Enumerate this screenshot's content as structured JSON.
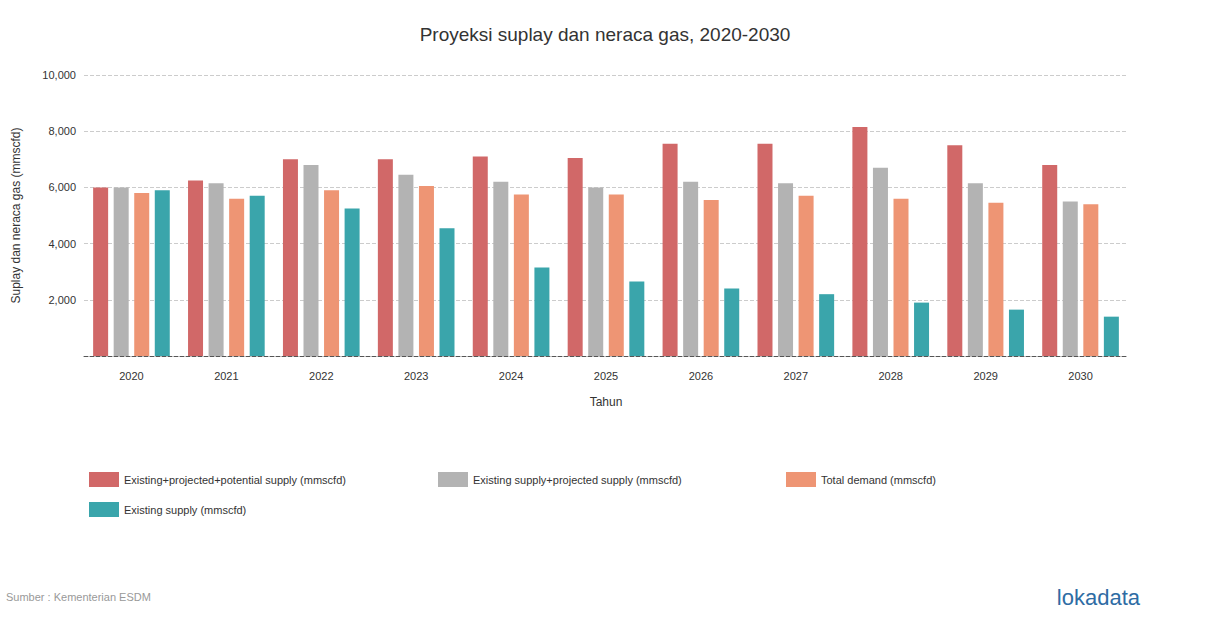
{
  "chart_data": {
    "type": "bar",
    "title": "Proyeksi suplay dan neraca gas, 2020-2030",
    "x_label": "Tahun",
    "y_label": "Suplay dan neraca gas (mmscfd)",
    "annotations": [
      "Sumber : Kementerian ESDM",
      "lokadata"
    ],
    "categories": [
      "2020",
      "2021",
      "2022",
      "2023",
      "2024",
      "2025",
      "2026",
      "2027",
      "2028",
      "2029",
      "2030"
    ],
    "series": [
      {
        "name": "Existing+projected+potential supply (mmscfd)",
        "color": "#d16868",
        "values": [
          6000,
          6250,
          7000,
          7000,
          7100,
          7050,
          7550,
          7550,
          8150,
          7500,
          6800
        ]
      },
      {
        "name": "Existing supply+projected supply (mmscfd)",
        "color": "#b3b3b3",
        "values": [
          6000,
          6150,
          6800,
          6450,
          6200,
          6000,
          6200,
          6150,
          6700,
          6150,
          5500
        ]
      },
      {
        "name": "Total demand (mmscfd)",
        "color": "#ee9574",
        "values": [
          5800,
          5600,
          5900,
          6050,
          5750,
          5750,
          5550,
          5700,
          5600,
          5450,
          5400
        ]
      },
      {
        "name": "Existing supply (mmscfd)",
        "color": "#3aa5ab",
        "values": [
          5900,
          5700,
          5250,
          4550,
          3150,
          2650,
          2400,
          2200,
          1900,
          1650,
          1400
        ]
      }
    ],
    "ylim": [
      0,
      10000
    ],
    "yticks": [
      {
        "value": 2000,
        "label": "2,000"
      },
      {
        "value": 4000,
        "label": "4,000"
      },
      {
        "value": 6000,
        "label": "6,000"
      },
      {
        "value": 8000,
        "label": "8,000"
      },
      {
        "value": 10000,
        "label": "10,000"
      }
    ],
    "grid": true,
    "legend": "bottom-left"
  }
}
